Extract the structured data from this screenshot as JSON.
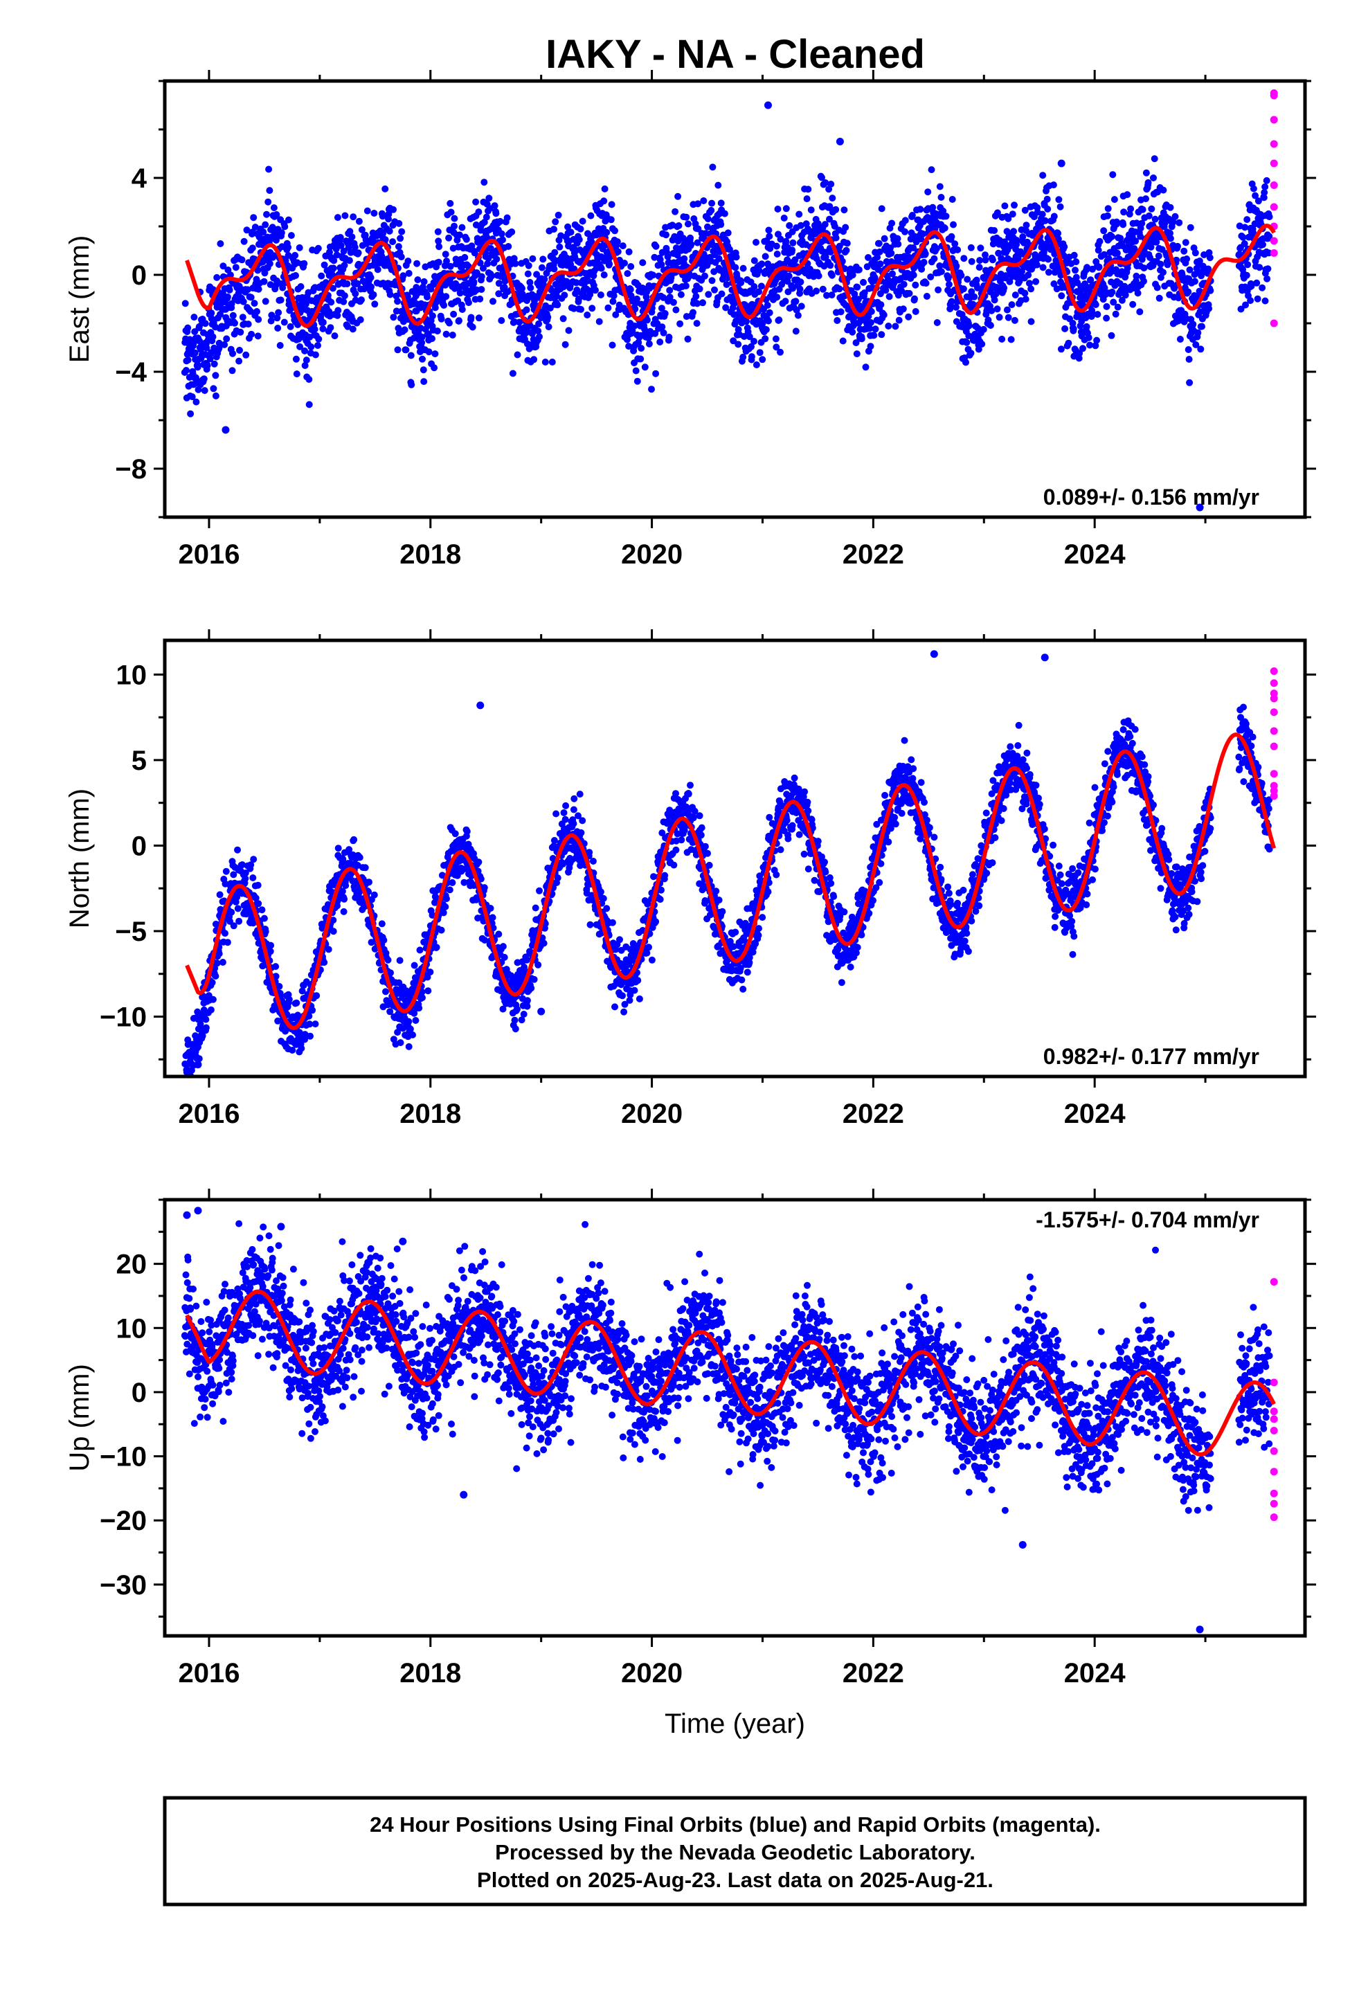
{
  "title": "IAKY  - NA - Cleaned",
  "colors": {
    "final": "#0000ff",
    "rapid": "#ff00ff",
    "model": "#ff0000",
    "frame": "#000000"
  },
  "chart_data": [
    {
      "type": "scatter",
      "panel": "east",
      "ylabel": "East (mm)",
      "xlim": [
        2015.6,
        2025.9
      ],
      "ylim": [
        -10,
        8
      ],
      "xticks": [
        2016,
        2018,
        2020,
        2022,
        2024
      ],
      "yticks": [
        4,
        0,
        -4,
        -8
      ],
      "rate": "0.089+/- 0.156 mm/yr",
      "rate_position": "bottom-right",
      "model": {
        "offset": 0.0,
        "trend": 0.089,
        "amp": 1.25,
        "phase": 2016.45,
        "semi_amp": 0.7,
        "semi_phase": 2016.6,
        "start": [
          2015.8,
          0.6
        ]
      },
      "scatter": {
        "sigma": 1.15,
        "early_bias": -1.8,
        "early_until": 2016.5
      },
      "rapid": [
        7.5,
        6.4,
        5.4,
        4.6,
        3.7,
        2.8,
        2.0,
        1.4,
        0.9,
        7.4,
        -2.0
      ],
      "outliers": [
        [
          2021.05,
          7.0
        ],
        [
          2016.15,
          -6.4
        ],
        [
          2024.95,
          -9.6
        ],
        [
          2021.7,
          5.5
        ],
        [
          2023.7,
          4.6
        ]
      ]
    },
    {
      "type": "scatter",
      "panel": "north",
      "ylabel": "North (mm)",
      "xlim": [
        2015.6,
        2025.9
      ],
      "ylim": [
        -13.5,
        12
      ],
      "xticks": [
        2016,
        2018,
        2020,
        2022,
        2024
      ],
      "yticks": [
        10,
        5,
        0,
        -5,
        -10
      ],
      "rate": "0.982+/- 0.177 mm/yr",
      "rate_position": "bottom-right",
      "model": {
        "offset": -2.6,
        "trend": 0.982,
        "amp": 4.4,
        "phase": 2016.27,
        "semi_amp": 0.0,
        "semi_phase": 2016.0,
        "start": [
          2015.8,
          -7.0
        ]
      },
      "scatter": {
        "sigma": 0.9,
        "early_bias": -1.8,
        "early_until": 2016.1
      },
      "rapid": [
        10.2,
        9.5,
        8.6,
        7.8,
        6.7,
        5.8,
        4.2,
        3.2,
        2.9,
        3.5,
        8.9
      ],
      "outliers": [
        [
          2015.9,
          -12.8
        ],
        [
          2019.0,
          -9.7
        ],
        [
          2018.45,
          8.2
        ],
        [
          2022.55,
          11.2
        ],
        [
          2023.55,
          11.0
        ]
      ]
    },
    {
      "type": "scatter",
      "panel": "up",
      "ylabel": "Up (mm)",
      "xlabel": "Time (year)",
      "xlim": [
        2015.6,
        2025.9
      ],
      "ylim": [
        -38,
        30
      ],
      "xticks": [
        2016,
        2018,
        2020,
        2022,
        2024
      ],
      "yticks": [
        20,
        10,
        0,
        -10,
        -20,
        -30
      ],
      "rate": "-1.575+/- 0.704 mm/yr",
      "rate_position": "top-right",
      "model": {
        "offset": 3.3,
        "trend": -1.575,
        "amp": 6.0,
        "phase": 2016.45,
        "semi_amp": 0.0,
        "semi_phase": 2016.0,
        "start": [
          2015.8,
          12.0
        ]
      },
      "scatter": {
        "sigma": 4.6,
        "early_bias": 3.5,
        "early_until": 2016.0
      },
      "rapid": [
        17.2,
        1.5,
        -3.0,
        -4.2,
        -6.0,
        -9.2,
        -12.4,
        -15.8,
        -17.4,
        -19.5
      ],
      "outliers": [
        [
          2015.8,
          27.6
        ],
        [
          2015.9,
          28.3
        ],
        [
          2016.65,
          25.8
        ],
        [
          2017.75,
          23.5
        ],
        [
          2024.95,
          -37.0
        ],
        [
          2023.35,
          -23.8
        ],
        [
          2018.3,
          -16.0
        ]
      ]
    }
  ],
  "footer": {
    "line1": "24 Hour Positions Using Final Orbits (blue) and Rapid Orbits (magenta).",
    "line2": "Processed by the Nevada Geodetic Laboratory.",
    "line3": "Plotted on 2025-Aug-23. Last data on 2025-Aug-21."
  }
}
